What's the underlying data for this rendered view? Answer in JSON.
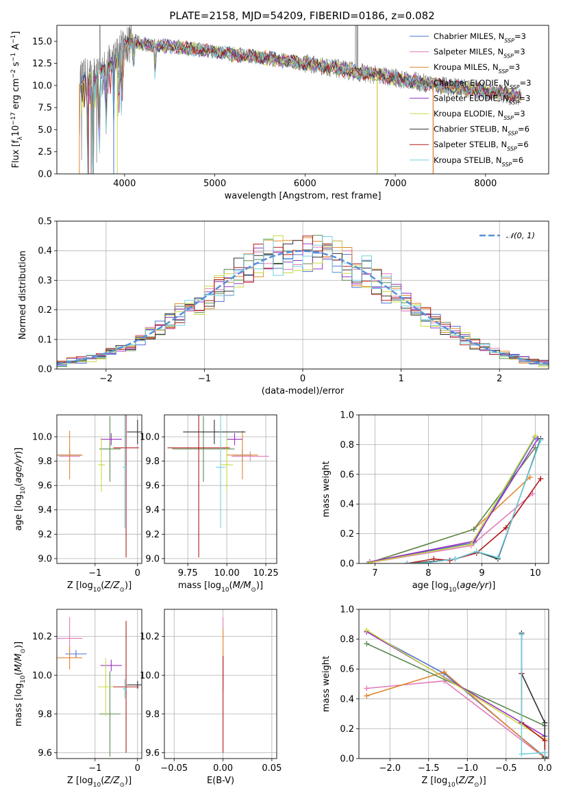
{
  "title": "PLATE=2158, MJD=54209, FIBERID=0186, z=0.082",
  "colors": {
    "Chabrier MILES": "#4a6fd0",
    "Salpeter MILES": "#e07ab8",
    "Kroupa MILES": "#e0862a",
    "Chabrier ELODIE": "#5a8a50",
    "Salpeter ELODIE": "#9a30c0",
    "Kroupa ELODIE": "#c8d840",
    "Chabrier STELIB": "#303030",
    "Salpeter STELIB": "#b01818",
    "Kroupa STELIB": "#70d0e0",
    "data": "#7a7a7a",
    "normal": "#5590d8"
  },
  "chart_data": [
    {
      "id": "spectrum",
      "type": "line",
      "xlabel": "wavelength [Angstrom, rest frame]",
      "ylabel": "Flux [f_λ 10^-17 erg cm^-2 s^-1 A^-1]",
      "xlim": [
        3250,
        8700
      ],
      "ylim": [
        0,
        16.8
      ],
      "xticks": [
        4000,
        5000,
        6000,
        7000,
        8000
      ],
      "yticks": [
        0.0,
        2.5,
        5.0,
        7.5,
        10.0,
        12.5,
        15.0
      ],
      "legend_position": "top-right",
      "series": [
        {
          "name": "Chabrier MILES, N_SSP=3",
          "label_main": "Chabrier MILES, N",
          "label_sub": "SSP",
          "label_tail": "=3"
        },
        {
          "name": "Salpeter MILES, N_SSP=3",
          "label_main": "Salpeter MILES, N",
          "label_sub": "SSP",
          "label_tail": "=3"
        },
        {
          "name": "Kroupa MILES, N_SSP=3",
          "label_main": "Kroupa MILES, N",
          "label_sub": "SSP",
          "label_tail": "=3"
        },
        {
          "name": "Chabrier ELODIE, N_SSP=3",
          "label_main": "Chabrier ELODIE, N",
          "label_sub": "SSP",
          "label_tail": "=3"
        },
        {
          "name": "Salpeter ELODIE, N_SSP=3",
          "label_main": "Salpeter ELODIE, N",
          "label_sub": "SSP",
          "label_tail": "=3"
        },
        {
          "name": "Kroupa ELODIE, N_SSP=3",
          "label_main": "Kroupa ELODIE, N",
          "label_sub": "SSP",
          "label_tail": "=3"
        },
        {
          "name": "Chabrier STELIB, N_SSP=6",
          "label_main": "Chabrier STELIB, N",
          "label_sub": "SSP",
          "label_tail": "=6"
        },
        {
          "name": "Salpeter STELIB, N_SSP=6",
          "label_main": "Salpeter STELIB, N",
          "label_sub": "SSP",
          "label_tail": "=6"
        },
        {
          "name": "Kroupa STELIB, N_SSP=6",
          "label_main": "Kroupa STELIB, N",
          "label_sub": "SSP",
          "label_tail": "=6"
        }
      ],
      "continuum": {
        "x": [
          3500,
          3600,
          3700,
          3800,
          3900,
          4000,
          4100,
          4200,
          4400,
          4600,
          4800,
          5000,
          5200,
          5500,
          5800,
          6000,
          6300,
          6600,
          6900,
          7200,
          7500,
          7800,
          8100,
          8400
        ],
        "y": [
          10.2,
          10.8,
          11.0,
          11.8,
          13.0,
          14.5,
          15.2,
          14.6,
          14.5,
          14.3,
          14.1,
          13.8,
          13.5,
          13.2,
          12.8,
          12.5,
          12.0,
          11.5,
          11.0,
          10.5,
          10.0,
          9.6,
          9.2,
          8.8
        ]
      }
    },
    {
      "id": "residuals",
      "type": "step",
      "xlabel": "(data-model)/error",
      "ylabel": "Normed distribution",
      "xlim": [
        -2.5,
        2.5
      ],
      "ylim": [
        0,
        0.5
      ],
      "xticks": [
        -2,
        -1,
        0,
        1,
        2
      ],
      "yticks": [
        0.0,
        0.1,
        0.2,
        0.3,
        0.4,
        0.5
      ],
      "legend_position": "top-right",
      "reference": {
        "label": "𝒩(0, 1)",
        "mean": 0,
        "sigma": 1
      }
    },
    {
      "id": "age-vs-Z",
      "type": "errorbar",
      "xlabel": "Z [log10(Z/Z⊙)]",
      "ylabel": "age [log10(age/yr)]",
      "xlim": [
        -1.9,
        0.1
      ],
      "ylim": [
        8.96,
        10.18
      ],
      "xticks": [
        -1,
        0
      ],
      "yticks": [
        9.0,
        9.2,
        9.4,
        9.6,
        9.8,
        10.0
      ],
      "points": [
        {
          "s": "Chabrier MILES",
          "x": -1.6,
          "y": 9.85,
          "xe": 0.3,
          "ye": 0.05
        },
        {
          "s": "Salpeter MILES",
          "x": -1.6,
          "y": 9.84,
          "xe": 0.25,
          "ye": 0.04
        },
        {
          "s": "Kroupa MILES",
          "x": -1.6,
          "y": 9.85,
          "xe": 0.3,
          "ye": 0.2
        },
        {
          "s": "Chabrier ELODIE",
          "x": -0.65,
          "y": 9.9,
          "xe": 0.25,
          "ye": 0.27
        },
        {
          "s": "Salpeter ELODIE",
          "x": -0.62,
          "y": 9.98,
          "xe": 0.25,
          "ye": 0.05
        },
        {
          "s": "Kroupa ELODIE",
          "x": -0.85,
          "y": 9.77,
          "xe": 0.08,
          "ye": 0.22
        },
        {
          "s": "Chabrier STELIB",
          "x": 0.0,
          "y": 10.04,
          "xe": 0.25,
          "ye": 0.1
        },
        {
          "s": "Salpeter STELIB",
          "x": -0.27,
          "y": 9.91,
          "xe": 0.3,
          "ye": 0.9
        },
        {
          "s": "Kroupa STELIB",
          "x": -0.3,
          "y": 9.75,
          "xe": 0.05,
          "ye": 0.5
        }
      ]
    },
    {
      "id": "age-vs-mass",
      "type": "errorbar",
      "xlabel": "mass [log10(M/M⊙)]",
      "ylabel": "",
      "xlim": [
        9.6,
        10.32
      ],
      "ylim": [
        8.96,
        10.18
      ],
      "xticks": [
        9.75,
        10.0,
        10.25
      ],
      "yticks": [
        9.0,
        9.2,
        9.4,
        9.6,
        9.8,
        10.0
      ],
      "points": [
        {
          "s": "Chabrier MILES",
          "x": 10.1,
          "y": 9.85,
          "xe": 0.06,
          "ye": 0.05
        },
        {
          "s": "Salpeter MILES",
          "x": 10.15,
          "y": 9.84,
          "xe": 0.12,
          "ye": 0.04
        },
        {
          "s": "Kroupa MILES",
          "x": 10.1,
          "y": 9.85,
          "xe": 0.1,
          "ye": 0.2
        },
        {
          "s": "Chabrier ELODIE",
          "x": 9.85,
          "y": 9.9,
          "xe": 0.2,
          "ye": 0.27
        },
        {
          "s": "Salpeter ELODIE",
          "x": 10.05,
          "y": 9.98,
          "xe": 0.05,
          "ye": 0.05
        },
        {
          "s": "Kroupa ELODIE",
          "x": 10.0,
          "y": 9.77,
          "xe": 0.04,
          "ye": 0.22
        },
        {
          "s": "Chabrier STELIB",
          "x": 9.92,
          "y": 10.04,
          "xe": 0.2,
          "ye": 0.1
        },
        {
          "s": "Salpeter STELIB",
          "x": 9.82,
          "y": 9.91,
          "xe": 0.2,
          "ye": 0.9
        },
        {
          "s": "Kroupa STELIB",
          "x": 9.96,
          "y": 9.75,
          "xe": 0.03,
          "ye": 0.5
        }
      ]
    },
    {
      "id": "weight-vs-age",
      "type": "line",
      "xlabel": "age [log10(age/yr)]",
      "ylabel": "mass weight",
      "xlim": [
        6.7,
        10.25
      ],
      "ylim": [
        0,
        1.0
      ],
      "xticks": [
        7,
        8,
        9,
        10
      ],
      "yticks": [
        0.0,
        0.2,
        0.4,
        0.6,
        0.8,
        1.0
      ],
      "series": [
        {
          "s": "Chabrier MILES",
          "x": [
            6.9,
            8.85,
            10.0
          ],
          "y": [
            0.01,
            0.14,
            0.85
          ]
        },
        {
          "s": "Salpeter MILES",
          "x": [
            6.9,
            8.8,
            9.95
          ],
          "y": [
            0.005,
            0.12,
            0.47
          ]
        },
        {
          "s": "Kroupa MILES",
          "x": [
            6.9,
            8.85,
            9.9
          ],
          "y": [
            0.005,
            0.23,
            0.58
          ]
        },
        {
          "s": "Chabrier ELODIE",
          "x": [
            6.9,
            8.85,
            10.0
          ],
          "y": [
            0.005,
            0.23,
            0.78
          ]
        },
        {
          "s": "Salpeter ELODIE",
          "x": [
            6.9,
            8.85,
            10.05
          ],
          "y": [
            0.01,
            0.15,
            0.84
          ]
        },
        {
          "s": "Kroupa ELODIE",
          "x": [
            6.9,
            8.8,
            10.0
          ],
          "y": [
            0.005,
            0.13,
            0.86
          ]
        },
        {
          "s": "Chabrier STELIB",
          "x": [
            7.6,
            8.0,
            8.5,
            8.9,
            9.3,
            10.1
          ],
          "y": [
            0.0,
            0.01,
            0.03,
            0.08,
            0.03,
            0.84
          ]
        },
        {
          "s": "Salpeter STELIB",
          "x": [
            7.6,
            8.1,
            8.4,
            8.9,
            9.45,
            10.1
          ],
          "y": [
            0.0,
            0.03,
            0.02,
            0.07,
            0.24,
            0.57
          ]
        },
        {
          "s": "Kroupa STELIB",
          "x": [
            7.6,
            8.0,
            8.5,
            8.9,
            9.3,
            10.1
          ],
          "y": [
            0.0,
            0.005,
            0.03,
            0.08,
            0.04,
            0.83
          ]
        }
      ]
    },
    {
      "id": "mass-vs-Z",
      "type": "errorbar",
      "xlabel": "Z [log10(Z/Z⊙)]",
      "ylabel": "mass [log10(M/M⊙)]",
      "xlim": [
        -1.9,
        0.1
      ],
      "ylim": [
        9.57,
        10.34
      ],
      "xticks": [
        -1,
        0
      ],
      "yticks": [
        9.6,
        9.8,
        10.0,
        10.2
      ],
      "points": [
        {
          "s": "Chabrier MILES",
          "x": -1.45,
          "y": 10.11,
          "xe": 0.25,
          "ye": 0.02
        },
        {
          "s": "Salpeter MILES",
          "x": -1.6,
          "y": 10.19,
          "xe": 0.3,
          "ye": 0.11
        },
        {
          "s": "Kroupa MILES",
          "x": -1.6,
          "y": 10.09,
          "xe": 0.3,
          "ye": 0.06
        },
        {
          "s": "Chabrier ELODIE",
          "x": -0.65,
          "y": 9.8,
          "xe": 0.25,
          "ye": 0.22
        },
        {
          "s": "Salpeter ELODIE",
          "x": -0.62,
          "y": 10.05,
          "xe": 0.25,
          "ye": 0.03
        },
        {
          "s": "Kroupa ELODIE",
          "x": -0.75,
          "y": 9.94,
          "xe": 0.18,
          "ye": 0.15
        },
        {
          "s": "Chabrier STELIB",
          "x": 0.0,
          "y": 9.95,
          "xe": 0.25,
          "ye": 0.02
        },
        {
          "s": "Salpeter STELIB",
          "x": -0.27,
          "y": 9.94,
          "xe": 0.3,
          "ye": 0.34
        },
        {
          "s": "Kroupa STELIB",
          "x": -0.3,
          "y": 9.93,
          "xe": 0.05,
          "ye": 0.05
        }
      ]
    },
    {
      "id": "mass-vs-EBV",
      "type": "errorbar",
      "xlabel": "E(B-V)",
      "ylabel": "",
      "xlim": [
        -0.06,
        0.055
      ],
      "ylim": [
        9.57,
        10.34
      ],
      "xticks": [
        -0.05,
        0.0,
        0.05
      ],
      "yticks": [
        9.6,
        9.8,
        10.0,
        10.2
      ],
      "points": [
        {
          "s": "Salpeter MILES",
          "x": 0.0,
          "y": 10.19,
          "xe": 0.0,
          "ye": 0.11
        },
        {
          "s": "Kroupa MILES",
          "x": 0.0,
          "y": 10.09,
          "xe": 0.0,
          "ye": 0.15
        },
        {
          "s": "Salpeter ELODIE",
          "x": 0.0,
          "y": 10.0,
          "xe": 0.0,
          "ye": 0.08
        },
        {
          "s": "Salpeter STELIB",
          "x": 0.0,
          "y": 9.85,
          "xe": 0.0,
          "ye": 0.25
        }
      ]
    },
    {
      "id": "weight-vs-Z",
      "type": "line",
      "xlabel": "Z [log10(Z/Z⊙)]",
      "ylabel": "mass weight",
      "xlim": [
        -2.4,
        0.05
      ],
      "ylim": [
        0,
        1.0
      ],
      "xticks": [
        -2.0,
        -1.5,
        -1.0,
        -0.5,
        0.0
      ],
      "yticks": [
        0.0,
        0.2,
        0.4,
        0.6,
        0.8,
        1.0
      ],
      "series": [
        {
          "s": "Chabrier MILES",
          "x": [
            -2.3,
            -1.3,
            0.0
          ],
          "y": [
            0.85,
            0.57,
            0.01
          ]
        },
        {
          "s": "Salpeter MILES",
          "x": [
            -2.3,
            -1.3,
            0.0
          ],
          "y": [
            0.47,
            0.52,
            0.005
          ]
        },
        {
          "s": "Kroupa MILES",
          "x": [
            -2.3,
            -1.3,
            0.0
          ],
          "y": [
            0.42,
            0.58,
            0.005
          ]
        },
        {
          "s": "Chabrier ELODIE",
          "x": [
            -2.3,
            0.0
          ],
          "y": [
            0.77,
            0.22
          ]
        },
        {
          "s": "Salpeter ELODIE",
          "x": [
            -2.3,
            0.0
          ],
          "y": [
            0.85,
            0.15
          ]
        },
        {
          "s": "Kroupa ELODIE",
          "x": [
            -2.3,
            0.0
          ],
          "y": [
            0.86,
            0.13
          ]
        },
        {
          "s": "Chabrier STELIB",
          "x": [
            -0.3,
            -0.3,
            0.0,
            0.0
          ],
          "y": [
            0.84,
            0.57,
            0.24,
            0.01
          ]
        },
        {
          "s": "Salpeter STELIB",
          "x": [
            -0.3,
            -0.3,
            0.0,
            0.0
          ],
          "y": [
            0.57,
            0.24,
            0.12,
            0.0
          ]
        },
        {
          "s": "Kroupa STELIB",
          "x": [
            -0.3,
            -0.3,
            0.0,
            0.0
          ],
          "y": [
            0.83,
            0.03,
            0.04,
            0.0
          ]
        }
      ]
    }
  ]
}
